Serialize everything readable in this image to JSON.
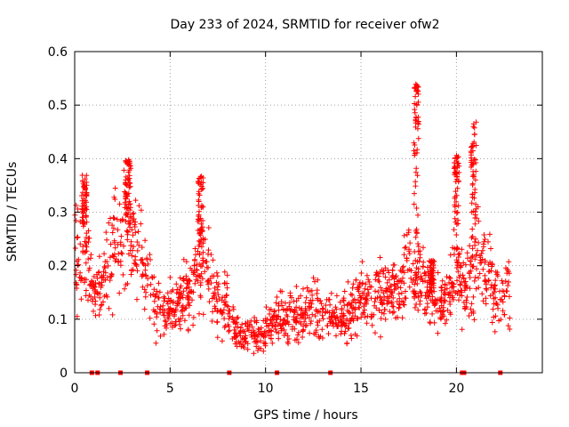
{
  "chart_data": {
    "type": "scatter",
    "title": "Day 233 of 2024, SRMTID for receiver ofw2",
    "xlabel": "GPS time / hours",
    "ylabel": "SRMTID / TECUs",
    "xlim": [
      0,
      24.5
    ],
    "ylim": [
      0,
      0.6
    ],
    "x_ticks": [
      0,
      5,
      10,
      15,
      20
    ],
    "x_tick_labels": [
      "0",
      "5",
      "10",
      "15",
      "20"
    ],
    "y_ticks": [
      0,
      0.1,
      0.2,
      0.3,
      0.4,
      0.5,
      0.6
    ],
    "y_tick_labels": [
      "0",
      "0.1",
      "0.2",
      "0.3",
      "0.4",
      "0.5",
      "0.6"
    ],
    "grid": true,
    "series": [
      {
        "name": "SRMTID",
        "color": "#ff0000",
        "marker": "plus",
        "x_range": [
          0,
          22.8
        ],
        "profile": [
          [
            0.0,
            0.21
          ],
          [
            0.5,
            0.22
          ],
          [
            1.0,
            0.15
          ],
          [
            1.5,
            0.16
          ],
          [
            2.0,
            0.24
          ],
          [
            2.5,
            0.28
          ],
          [
            3.0,
            0.26
          ],
          [
            3.5,
            0.2
          ],
          [
            4.0,
            0.15
          ],
          [
            4.5,
            0.11
          ],
          [
            5.0,
            0.13
          ],
          [
            5.5,
            0.13
          ],
          [
            6.0,
            0.15
          ],
          [
            6.5,
            0.19
          ],
          [
            7.0,
            0.18
          ],
          [
            7.5,
            0.14
          ],
          [
            8.0,
            0.12
          ],
          [
            8.5,
            0.08
          ],
          [
            9.0,
            0.07
          ],
          [
            9.5,
            0.07
          ],
          [
            10.0,
            0.08
          ],
          [
            10.5,
            0.1
          ],
          [
            11.0,
            0.1
          ],
          [
            11.5,
            0.11
          ],
          [
            12.0,
            0.11
          ],
          [
            12.5,
            0.12
          ],
          [
            13.0,
            0.1
          ],
          [
            13.5,
            0.11
          ],
          [
            14.0,
            0.1
          ],
          [
            14.5,
            0.12
          ],
          [
            15.0,
            0.14
          ],
          [
            15.5,
            0.14
          ],
          [
            16.0,
            0.14
          ],
          [
            16.5,
            0.14
          ],
          [
            17.0,
            0.15
          ],
          [
            17.5,
            0.2
          ],
          [
            18.0,
            0.2
          ],
          [
            18.5,
            0.14
          ],
          [
            19.0,
            0.13
          ],
          [
            19.5,
            0.14
          ],
          [
            20.0,
            0.19
          ],
          [
            20.5,
            0.15
          ],
          [
            21.0,
            0.22
          ],
          [
            21.5,
            0.2
          ],
          [
            22.0,
            0.14
          ],
          [
            22.8,
            0.15
          ]
        ],
        "peaks": [
          [
            0.5,
            0.37
          ],
          [
            2.8,
            0.4
          ],
          [
            6.6,
            0.37
          ],
          [
            17.9,
            0.54
          ],
          [
            18.7,
            0.21
          ],
          [
            20.0,
            0.41
          ],
          [
            20.9,
            0.47
          ]
        ],
        "zero_markers_x": [
          0.9,
          1.2,
          2.4,
          3.8,
          8.1,
          10.6,
          13.4,
          20.3,
          20.4,
          22.3
        ]
      }
    ]
  }
}
